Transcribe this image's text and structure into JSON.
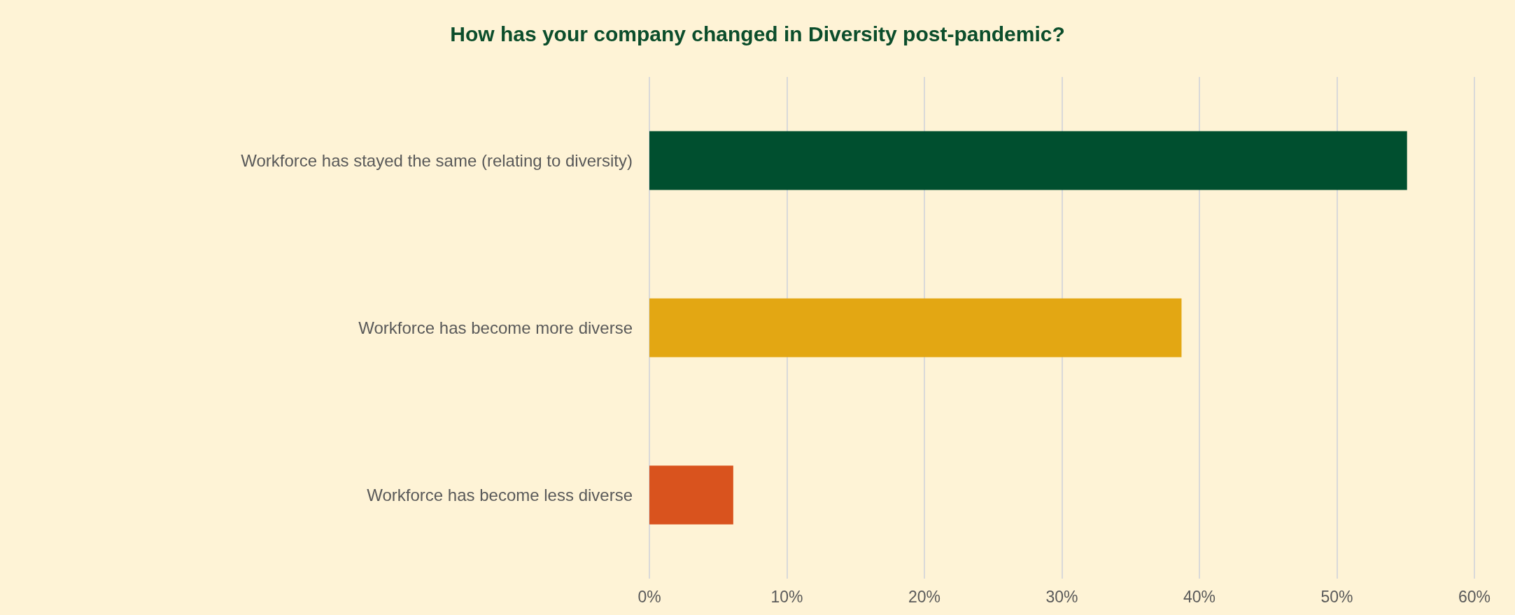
{
  "chart_data": {
    "type": "bar",
    "orientation": "horizontal",
    "title": "How has your company changed in Diversity post-pandemic?",
    "categories": [
      "Workforce has stayed the same (relating to diversity)",
      "Workforce has become more diverse",
      "Workforce has become less diverse"
    ],
    "values": [
      55.1,
      38.7,
      6.1
    ],
    "colors": [
      "#004f2f",
      "#e3a713",
      "#d9531e"
    ],
    "xlim": [
      0,
      60
    ],
    "xticks": [
      {
        "value": 0,
        "label": "0%"
      },
      {
        "value": 10,
        "label": "10%"
      },
      {
        "value": 20,
        "label": "20%"
      },
      {
        "value": 30,
        "label": "30%"
      },
      {
        "value": 40,
        "label": "40%"
      },
      {
        "value": 50,
        "label": "50%"
      },
      {
        "value": 60,
        "label": "60%"
      }
    ],
    "grid": "x"
  }
}
